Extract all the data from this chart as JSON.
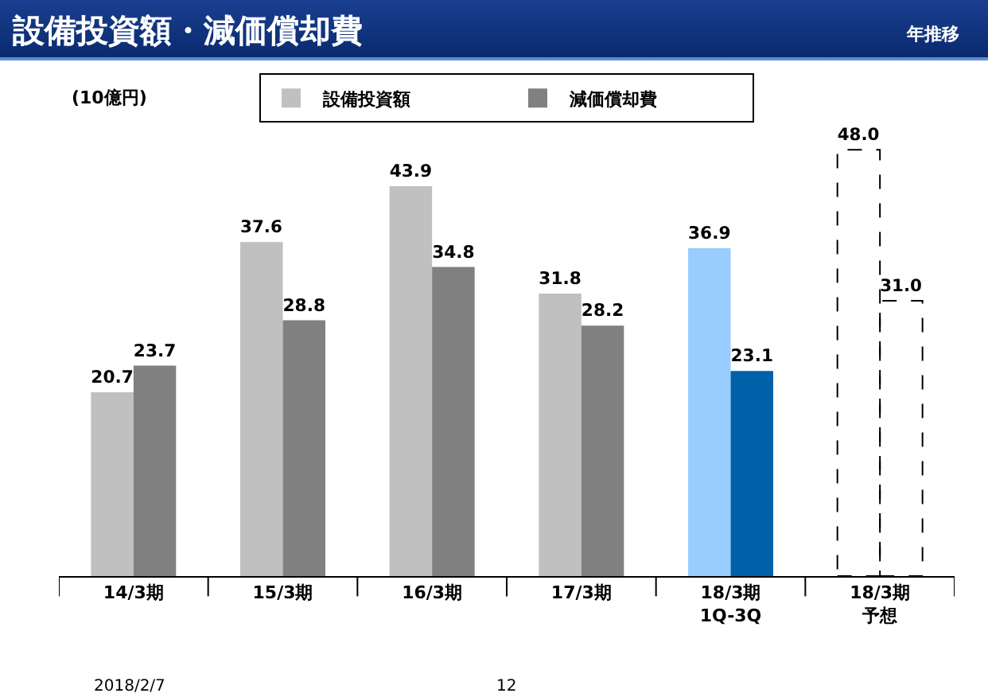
{
  "chart_data": {
    "type": "bar",
    "title": "設備投資額・減価償却費",
    "subtitle": "年推移",
    "ylabel": "(10億円)",
    "categories": [
      "14/3期",
      "15/3期",
      "16/3期",
      "17/3期",
      "18/3期\n1Q-3Q",
      "18/3期予想"
    ],
    "series": [
      {
        "name": "設備投資額",
        "color": "#c0c0c0",
        "colors": [
          "#c0c0c0",
          "#c0c0c0",
          "#c0c0c0",
          "#c0c0c0",
          "#99ccff",
          "#ffffff"
        ],
        "values": [
          20.7,
          37.6,
          43.9,
          31.8,
          36.9,
          48.0
        ],
        "value_labels": [
          "20.7",
          "37.6",
          "43.9",
          "31.8",
          "36.9",
          "48.0"
        ]
      },
      {
        "name": "減価償却費",
        "color": "#808080",
        "colors": [
          "#808080",
          "#808080",
          "#808080",
          "#808080",
          "#0060a8",
          "#ffffff"
        ],
        "values": [
          23.7,
          28.8,
          34.8,
          28.2,
          23.1,
          31.0
        ],
        "value_labels": [
          "23.7",
          "28.8",
          "34.8",
          "28.2",
          "23.1",
          "31.0"
        ]
      }
    ],
    "legend": "top",
    "grid": false,
    "annotations": [
      "2018/2/7",
      "12"
    ]
  }
}
